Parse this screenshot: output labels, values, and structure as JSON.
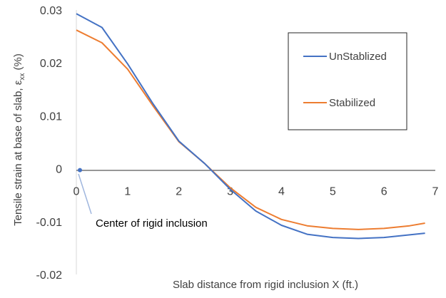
{
  "chart_data": {
    "type": "line",
    "title": "",
    "xlabel": "Slab distance from rigid inclusion X (ft.)",
    "ylabel_main": "Tensile strain at base of slab, ε",
    "ylabel_sub": "xx",
    "ylabel_unit": " (%)",
    "xlim": [
      0,
      7
    ],
    "ylim": [
      -0.02,
      0.03
    ],
    "x_ticks": [
      0,
      1,
      2,
      3,
      4,
      5,
      6,
      7
    ],
    "x_tick_labels": [
      "0",
      "1",
      "2",
      "3",
      "4",
      "5",
      "6",
      "7"
    ],
    "y_ticks": [
      0.03,
      0.02,
      0.01,
      0,
      -0.01,
      -0.02
    ],
    "y_tick_labels": [
      "0.03",
      "0.02",
      "0.01",
      "0",
      "-0.01",
      "-0.02"
    ],
    "grid": false,
    "legend_position": "top-right",
    "series": [
      {
        "name": "UnStablized",
        "color": "#4472C4",
        "x": [
          0,
          0.5,
          1,
          1.5,
          2,
          2.5,
          3,
          3.5,
          4,
          4.5,
          5,
          5.5,
          6,
          6.5,
          6.8
        ],
        "y": [
          0.0293,
          0.0267,
          0.0198,
          0.0122,
          0.0052,
          0.001,
          -0.0039,
          -0.008,
          -0.0107,
          -0.0124,
          -0.013,
          -0.0132,
          -0.013,
          -0.0125,
          -0.0122
        ]
      },
      {
        "name": "Stabilized",
        "color": "#ED7D31",
        "x": [
          0,
          0.5,
          1,
          1.5,
          2,
          2.5,
          3,
          3.5,
          4,
          4.5,
          5,
          5.5,
          6,
          6.5,
          6.8
        ],
        "y": [
          0.0262,
          0.0238,
          0.0188,
          0.0118,
          0.0051,
          0.001,
          -0.0036,
          -0.0073,
          -0.0096,
          -0.0108,
          -0.0113,
          -0.0115,
          -0.0113,
          -0.0108,
          -0.0103
        ]
      }
    ],
    "annotation": {
      "text": "Center of rigid inclusion",
      "point": [
        0,
        0
      ],
      "color": "#4472C4"
    }
  }
}
